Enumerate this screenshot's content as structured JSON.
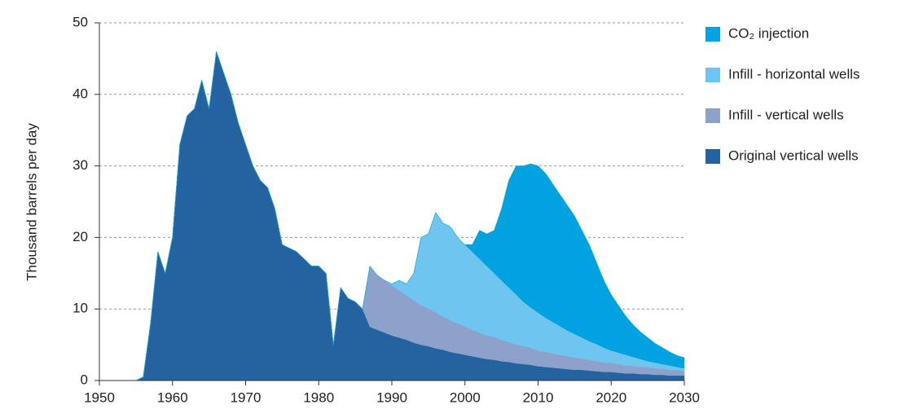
{
  "chart_data": {
    "type": "stacked-area",
    "y_label": "Thousand barrels per day",
    "x": [
      1950,
      1951,
      1952,
      1953,
      1954,
      1955,
      1956,
      1957,
      1958,
      1959,
      1960,
      1961,
      1962,
      1963,
      1964,
      1965,
      1966,
      1967,
      1968,
      1969,
      1970,
      1971,
      1972,
      1973,
      1974,
      1975,
      1976,
      1977,
      1978,
      1979,
      1980,
      1981,
      1982,
      1983,
      1984,
      1985,
      1986,
      1987,
      1988,
      1989,
      1990,
      1991,
      1992,
      1993,
      1994,
      1995,
      1996,
      1997,
      1998,
      1999,
      2000,
      2001,
      2002,
      2003,
      2004,
      2005,
      2006,
      2007,
      2008,
      2009,
      2010,
      2011,
      2012,
      2013,
      2014,
      2015,
      2016,
      2017,
      2018,
      2019,
      2020,
      2021,
      2022,
      2023,
      2024,
      2025,
      2026,
      2027,
      2028,
      2029,
      2030
    ],
    "series": [
      {
        "name": "Original vertical wells",
        "color": "#2563a0",
        "values": [
          0,
          0,
          0,
          0,
          0,
          0,
          0.5,
          8,
          18,
          15,
          20,
          33,
          37,
          38,
          42,
          38,
          46,
          43,
          40,
          36,
          33,
          30,
          28,
          27,
          24,
          19,
          18.5,
          18,
          17,
          16,
          16,
          15,
          5,
          13,
          11.5,
          11,
          10,
          7.5,
          7.1,
          6.7,
          6.3,
          6.0,
          5.7,
          5.3,
          5.0,
          4.8,
          4.5,
          4.3,
          4.0,
          3.8,
          3.6,
          3.4,
          3.2,
          3.0,
          2.9,
          2.7,
          2.6,
          2.4,
          2.3,
          2.2,
          2.0,
          1.9,
          1.8,
          1.7,
          1.6,
          1.5,
          1.5,
          1.4,
          1.3,
          1.2,
          1.2,
          1.1,
          1.0,
          1.0,
          0.9,
          0.9,
          0.8,
          0.8,
          0.7,
          0.7,
          0.7
        ]
      },
      {
        "name": "Infill - vertical wells",
        "color": "#8da2cb",
        "values": [
          0,
          0,
          0,
          0,
          0,
          0,
          0,
          0,
          0,
          0,
          0,
          0,
          0,
          0,
          0,
          0,
          0,
          0,
          0,
          0,
          0,
          0,
          0,
          0,
          0,
          0,
          0,
          0,
          0,
          0,
          0,
          0,
          0,
          0,
          0,
          0,
          0,
          8.5,
          7.6,
          7.3,
          7.0,
          6.6,
          6.2,
          5.9,
          5.5,
          5.3,
          5.0,
          4.7,
          4.4,
          4.2,
          4.0,
          3.7,
          3.5,
          3.3,
          3.2,
          3.0,
          2.8,
          2.6,
          2.5,
          2.4,
          2.2,
          2.1,
          2.0,
          1.9,
          1.8,
          1.7,
          1.6,
          1.5,
          1.4,
          1.3,
          1.3,
          1.2,
          1.1,
          1.1,
          1.0,
          1.0,
          0.9,
          0.9,
          0.8,
          0.8,
          0.7
        ]
      },
      {
        "name": "Infill - horizontal wells",
        "color": "#6ec6f0",
        "values": [
          0,
          0,
          0,
          0,
          0,
          0,
          0,
          0,
          0,
          0,
          0,
          0,
          0,
          0,
          0,
          0,
          0,
          0,
          0,
          0,
          0,
          0,
          0,
          0,
          0,
          0,
          0,
          0,
          0,
          0,
          0,
          0,
          0,
          0,
          0,
          0,
          0,
          0,
          0,
          0,
          0.2,
          1.4,
          1.6,
          3.8,
          9.5,
          10.4,
          14.0,
          13.0,
          13.1,
          12.0,
          11.4,
          10.9,
          10.3,
          9.7,
          8.9,
          8.3,
          7.6,
          7.0,
          6.2,
          5.6,
          5.3,
          4.8,
          4.4,
          4.0,
          3.6,
          3.3,
          2.9,
          2.6,
          2.4,
          2.1,
          1.7,
          1.6,
          1.5,
          1.2,
          1.1,
          0.8,
          0.8,
          0.6,
          0.6,
          0.4,
          0.3
        ]
      },
      {
        "name": "CO₂ injection",
        "color": "#00a3e0",
        "values": [
          0,
          0,
          0,
          0,
          0,
          0,
          0,
          0,
          0,
          0,
          0,
          0,
          0,
          0,
          0,
          0,
          0,
          0,
          0,
          0,
          0,
          0,
          0,
          0,
          0,
          0,
          0,
          0,
          0,
          0,
          0,
          0,
          0,
          0,
          0,
          0,
          0,
          0,
          0,
          0,
          0,
          0,
          0,
          0,
          0,
          0,
          0,
          0,
          0,
          0,
          0,
          1,
          4,
          4.5,
          6,
          10,
          15,
          18,
          19,
          20.1,
          20.5,
          20.2,
          19.3,
          18.4,
          17.5,
          16.5,
          15,
          13.5,
          11.4,
          9.4,
          7.8,
          6.6,
          5.4,
          4.5,
          3.8,
          3.3,
          2.7,
          2.3,
          1.9,
          1.6,
          1.5
        ]
      }
    ],
    "xlim": [
      1950,
      2030
    ],
    "xticks": [
      1950,
      1960,
      1970,
      1980,
      1990,
      2000,
      2010,
      2020,
      2030
    ],
    "ylim": [
      0,
      50
    ],
    "yticks": [
      0,
      10,
      20,
      30,
      40,
      50
    ],
    "grid": true,
    "legend": "right"
  }
}
